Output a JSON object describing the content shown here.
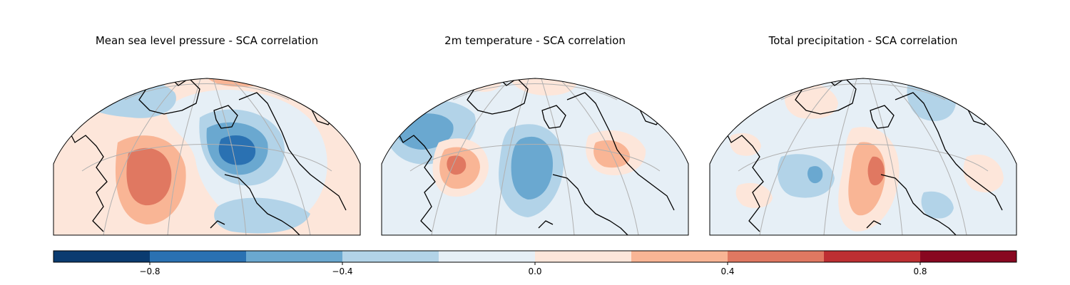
{
  "panels": [
    {
      "title": "Mean sea level pressure - SCA correlation"
    },
    {
      "title": "2m temperature - SCA correlation"
    },
    {
      "title": "Total precipitation - SCA correlation"
    }
  ],
  "colorbar": {
    "min": -1.0,
    "max": 1.0,
    "boundaries": [
      -1.0,
      -0.8,
      -0.6,
      -0.4,
      -0.2,
      0.0,
      0.2,
      0.4,
      0.6,
      0.8,
      1.0
    ],
    "colors": [
      "#0a3b70",
      "#2a71b2",
      "#6aa8d0",
      "#b2d3e8",
      "#e6eff6",
      "#fde6da",
      "#f9b595",
      "#e07861",
      "#bd2f32",
      "#880720"
    ],
    "ticks": [
      -0.8,
      -0.4,
      0.0,
      0.4,
      0.8
    ],
    "tick_labels": [
      "−0.8",
      "−0.4",
      "0.0",
      "0.4",
      "0.8"
    ]
  }
}
